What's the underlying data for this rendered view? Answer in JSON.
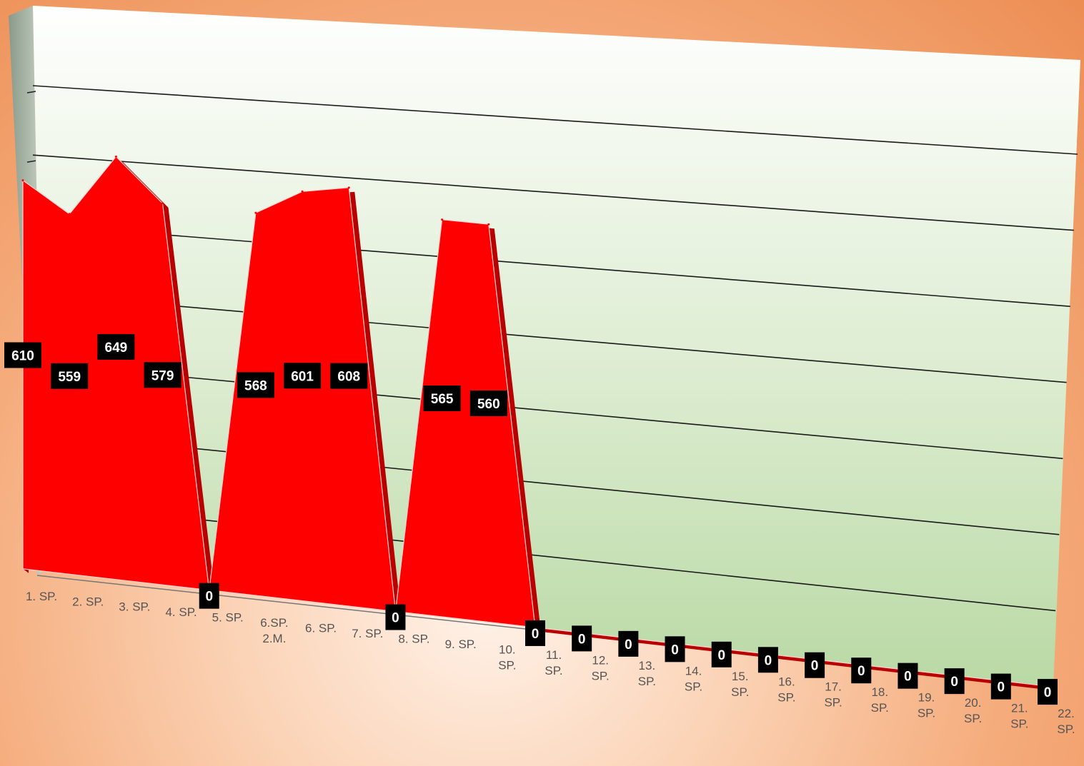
{
  "chart_data": {
    "type": "area",
    "title": "",
    "xlabel": "",
    "ylabel": "",
    "ylim": [
      0,
      700
    ],
    "grid": true,
    "legend": "none",
    "categories": [
      "1. SP.",
      "2. SP.",
      "3. SP.",
      "4. SP.",
      "5. SP.",
      "6.SP. 2.M.",
      "6. SP.",
      "7. SP.",
      "8. SP.",
      "9. SP.",
      "10. SP.",
      "11. SP.",
      "12. SP.",
      "13. SP.",
      "14. SP.",
      "15. SP.",
      "16. SP.",
      "17. SP.",
      "18. SP.",
      "19. SP.",
      "20. SP.",
      "21. SP.",
      "22. SP."
    ],
    "values": [
      610,
      559,
      649,
      579,
      0,
      568,
      601,
      608,
      0,
      565,
      560,
      0,
      0,
      0,
      0,
      0,
      0,
      0,
      0,
      0,
      0,
      0,
      0
    ],
    "colors": {
      "area_fill": "#ff0000",
      "area_side": "#b80000",
      "label_bg": "#000000",
      "label_text": "#ffffff",
      "gridline": "#1a1a1a"
    }
  }
}
